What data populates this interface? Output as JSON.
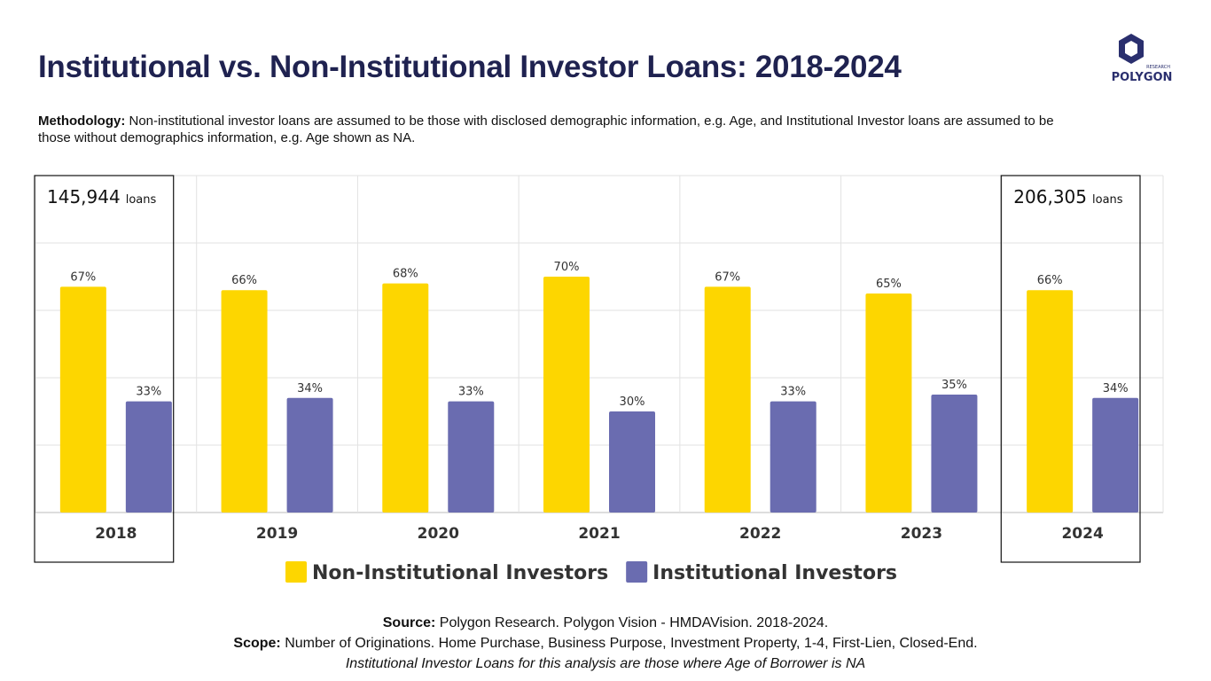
{
  "header": {
    "title": "Institutional vs. Non-Institutional Investor Loans: 2018-2024",
    "logo": {
      "name": "POLYGON",
      "tag": "RESEARCH"
    }
  },
  "methodology": {
    "label": "Methodology:",
    "text": "Non-institutional investor loans are assumed to be those with disclosed demographic information, e.g. Age, and Institutional Investor loans are assumed to be those without demographics information, e.g. Age shown as NA."
  },
  "chart_data": {
    "type": "bar",
    "categories": [
      "2018",
      "2019",
      "2020",
      "2021",
      "2022",
      "2023",
      "2024"
    ],
    "series": [
      {
        "name": "Non-Institutional Investors",
        "color": "#fdd600",
        "values": [
          67,
          66,
          68,
          70,
          67,
          65,
          66
        ],
        "value_labels": [
          "67%",
          "66%",
          "68%",
          "70%",
          "67%",
          "65%",
          "66%"
        ]
      },
      {
        "name": "Institutional Investors",
        "color": "#6a6cb0",
        "values": [
          33,
          34,
          33,
          30,
          33,
          35,
          34
        ],
        "value_labels": [
          "33%",
          "34%",
          "33%",
          "30%",
          "33%",
          "35%",
          "34%"
        ]
      }
    ],
    "ylim": [
      0,
      100
    ],
    "yticks": [
      0,
      20,
      40,
      60,
      80,
      100
    ],
    "grid": true,
    "highlights": [
      {
        "category": "2018",
        "count": "145,944",
        "unit": "loans"
      },
      {
        "category": "2024",
        "count": "206,305",
        "unit": "loans"
      }
    ]
  },
  "footer": {
    "source": {
      "label": "Source:",
      "text": "Polygon Research. Polygon Vision - HMDAVision. 2018-2024."
    },
    "scope": {
      "label": "Scope:",
      "text": "Number of Originations. Home Purchase, Business Purpose, Investment Property, 1-4, First-Lien, Closed-End."
    },
    "note": "Institutional Investor Loans for this analysis are those where Age of Borrower is NA"
  }
}
